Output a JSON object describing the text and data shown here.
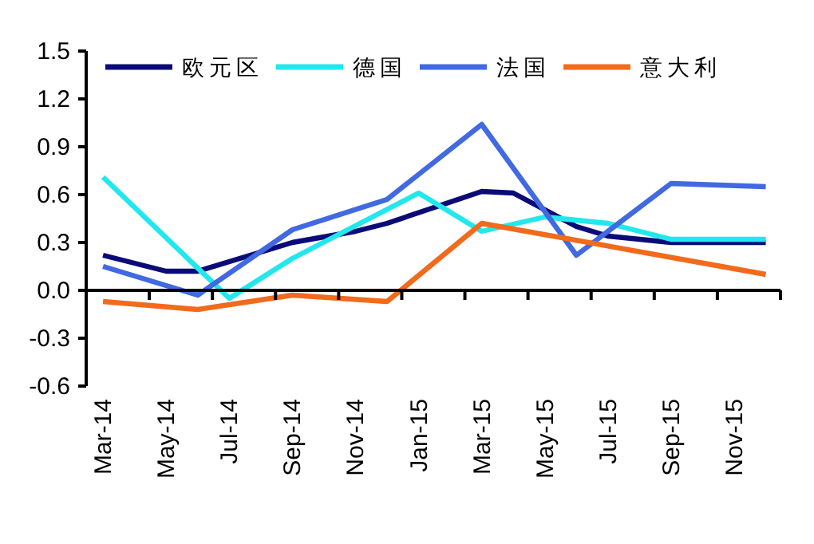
{
  "chart_data": {
    "type": "line",
    "legend": "top left",
    "line_style": "solid",
    "marker": "none",
    "xlim": [
      "2014-02-15",
      "2015-12-15"
    ],
    "xticks": [
      {
        "value": "2014-03",
        "label": "Mar-14"
      },
      {
        "value": "2014-05",
        "label": "May-14"
      },
      {
        "value": "2014-07",
        "label": "Jul-14"
      },
      {
        "value": "2014-09",
        "label": "Sep-14"
      },
      {
        "value": "2014-11",
        "label": "Nov-14"
      },
      {
        "value": "2015-01",
        "label": "Jan-15"
      },
      {
        "value": "2015-03",
        "label": "Mar-15"
      },
      {
        "value": "2015-05",
        "label": "May-15"
      },
      {
        "value": "2015-07",
        "label": "Jul-15"
      },
      {
        "value": "2015-09",
        "label": "Sep-15"
      },
      {
        "value": "2015-11",
        "label": "Nov-15"
      },
      {
        "value": "2014-04-15",
        "label": null
      },
      {
        "value": "2014-06-15",
        "label": null
      },
      {
        "value": "2014-08-15",
        "label": null
      },
      {
        "value": "2014-10-15",
        "label": null
      },
      {
        "value": "2014-12-15",
        "label": null
      },
      {
        "value": "2015-02-15",
        "label": null
      },
      {
        "value": "2015-04-15",
        "label": null
      },
      {
        "value": "2015-06-15",
        "label": null
      },
      {
        "value": "2015-08-15",
        "label": null
      },
      {
        "value": "2015-10-15",
        "label": null
      },
      {
        "value": "2015-12-15",
        "label": null
      }
    ],
    "ylim": [
      -0.6,
      1.5
    ],
    "yticks": [
      -0.6,
      -0.3,
      {
        "value": 0,
        "label": "0.0"
      },
      0.3,
      0.6,
      0.9,
      1.2,
      1.5
    ],
    "series": [
      {
        "name": "欧元区",
        "color": "#0b0b78",
        "x": [
          "2014-03",
          "2014-05",
          "2014-06",
          "2014-09",
          "2014-11",
          "2014-12",
          "2015-03",
          "2015-04",
          "2015-06",
          "2015-07",
          "2015-09",
          "2015-12"
        ],
        "values": [
          0.22,
          0.12,
          0.12,
          0.3,
          0.37,
          0.42,
          0.62,
          0.61,
          0.4,
          0.34,
          0.3,
          0.3
        ]
      },
      {
        "name": "德国",
        "color": "#22e8ee",
        "x": [
          "2014-03",
          "2014-07",
          "2014-09",
          "2015-01",
          "2015-03",
          "2015-05",
          "2015-07",
          "2015-09",
          "2015-12"
        ],
        "values": [
          0.71,
          -0.05,
          0.2,
          0.61,
          0.37,
          0.46,
          0.42,
          0.32,
          0.32
        ]
      },
      {
        "name": "法国",
        "color": "#4169e1",
        "x": [
          "2014-03",
          "2014-06",
          "2014-09",
          "2014-12",
          "2015-03",
          "2015-06",
          "2015-09",
          "2015-12"
        ],
        "values": [
          0.15,
          -0.03,
          0.38,
          0.57,
          1.04,
          0.22,
          0.67,
          0.65
        ]
      },
      {
        "name": "意大利",
        "color": "#f26a1b",
        "x": [
          "2014-03",
          "2014-06",
          "2014-09",
          "2014-12",
          "2015-03",
          "2015-12"
        ],
        "values": [
          -0.07,
          -0.12,
          -0.03,
          -0.07,
          0.42,
          0.1
        ]
      }
    ]
  }
}
